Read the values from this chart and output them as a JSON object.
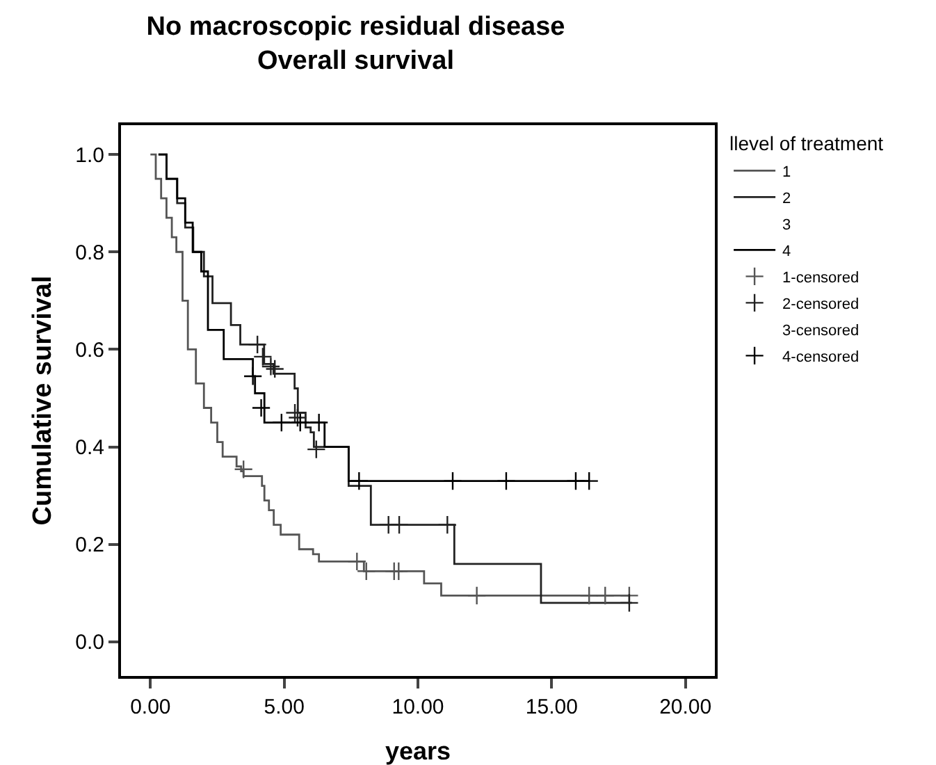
{
  "chart_data": {
    "type": "step",
    "title": "No macroscopic residual disease\nOverall survival",
    "xlabel": "years",
    "ylabel": "Cumulative survival",
    "legend_title": "llevel of treatment",
    "legend": "top right",
    "grid": false,
    "xlim": [
      -1.1,
      21.1
    ],
    "ylim": [
      -0.07,
      1.06
    ],
    "xticks": [
      {
        "value": 0,
        "label": "0.00"
      },
      {
        "value": 5,
        "label": "5.00"
      },
      {
        "value": 10,
        "label": "10.00"
      },
      {
        "value": 15,
        "label": "15.00"
      },
      {
        "value": 20,
        "label": "20.00"
      }
    ],
    "yticks": [
      {
        "value": 0,
        "label": "0.0"
      },
      {
        "value": 0.2,
        "label": "0.2"
      },
      {
        "value": 0.4,
        "label": "0.4"
      },
      {
        "value": 0.6,
        "label": "0.6"
      },
      {
        "value": 0.8,
        "label": "0.8"
      },
      {
        "value": 1,
        "label": "1.0"
      }
    ],
    "series": [
      {
        "name": "1",
        "color": "#555555",
        "x": [
          0,
          0.2,
          0.4,
          0.6,
          0.8,
          0.97,
          1.2,
          1.4,
          1.7,
          2.0,
          2.27,
          2.5,
          2.7,
          3.22,
          3.39,
          3.48,
          4.17,
          4.26,
          4.43,
          4.61,
          4.87,
          5.56,
          6.08,
          6.3,
          7.98,
          10.23,
          10.87,
          17.9
        ],
        "values": [
          1.0,
          0.95,
          0.91,
          0.87,
          0.83,
          0.8,
          0.7,
          0.6,
          0.53,
          0.48,
          0.45,
          0.41,
          0.38,
          0.36,
          0.35,
          0.34,
          0.32,
          0.29,
          0.27,
          0.24,
          0.22,
          0.19,
          0.18,
          0.165,
          0.145,
          0.12,
          0.095,
          0.095
        ]
      },
      {
        "name": "2",
        "color": "#222222",
        "x": [
          0.3,
          0.6,
          1.0,
          1.3,
          1.6,
          2.0,
          2.32,
          3.01,
          3.36,
          4.25,
          4.6,
          5.39,
          5.51,
          5.8,
          5.99,
          6.11,
          7.41,
          8.24,
          11.36,
          14.6,
          18.0
        ],
        "values": [
          1.0,
          0.95,
          0.9,
          0.85,
          0.8,
          0.75,
          0.695,
          0.65,
          0.61,
          0.57,
          0.55,
          0.52,
          0.47,
          0.44,
          0.43,
          0.4,
          0.32,
          0.24,
          0.16,
          0.08,
          0.08
        ]
      },
      {
        "name": "3"
      },
      {
        "name": "4",
        "color": "#000000",
        "x": [
          0.3,
          0.6,
          1.0,
          1.3,
          1.58,
          1.9,
          2.15,
          2.74,
          3.83,
          3.91,
          4.26,
          6.51,
          7.41,
          16.4
        ],
        "values": [
          1.0,
          0.95,
          0.91,
          0.86,
          0.8,
          0.76,
          0.64,
          0.58,
          0.545,
          0.51,
          0.45,
          0.4,
          0.33,
          0.33
        ]
      },
      {
        "name": "1-censored",
        "type": "scatter",
        "marker": "cross",
        "color": "#555555",
        "x": [
          3.48,
          7.72,
          8.07,
          9.11,
          9.28,
          12.2,
          16.4,
          17.0,
          17.9
        ],
        "values": [
          0.354,
          0.165,
          0.145,
          0.145,
          0.145,
          0.095,
          0.095,
          0.095,
          0.095
        ]
      },
      {
        "name": "2-censored",
        "type": "scatter",
        "marker": "cross",
        "color": "#222222",
        "x": [
          4.0,
          4.2,
          4.5,
          4.65,
          5.4,
          5.5,
          6.2,
          8.9,
          9.3,
          11.1,
          17.9
        ],
        "values": [
          0.61,
          0.585,
          0.565,
          0.56,
          0.47,
          0.46,
          0.395,
          0.24,
          0.24,
          0.24,
          0.08
        ]
      },
      {
        "name": "3-censored",
        "type": "scatter",
        "marker": "none"
      },
      {
        "name": "4-censored",
        "type": "scatter",
        "marker": "cross",
        "color": "#000000",
        "x": [
          3.83,
          4.14,
          4.9,
          5.6,
          6.3,
          7.8,
          11.3,
          13.3,
          15.9,
          16.4
        ],
        "values": [
          0.545,
          0.48,
          0.45,
          0.45,
          0.45,
          0.33,
          0.33,
          0.33,
          0.33,
          0.33
        ]
      }
    ]
  }
}
